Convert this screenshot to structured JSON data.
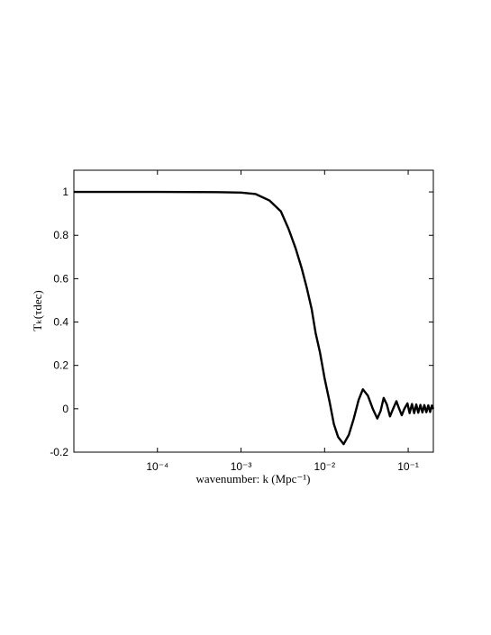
{
  "chart_data": {
    "type": "line",
    "xlabel": "wavenumber: k (Mpc⁻¹)",
    "ylabel": "Tₖ(τdec)",
    "xscale": "log",
    "xlim": [
      1e-05,
      0.2
    ],
    "ylim": [
      -0.2,
      1.1
    ],
    "xticks": [
      {
        "value": 0.0001,
        "label": "10⁻⁴"
      },
      {
        "value": 0.001,
        "label": "10⁻³"
      },
      {
        "value": 0.01,
        "label": "10⁻²"
      },
      {
        "value": 0.1,
        "label": "10⁻¹"
      }
    ],
    "yticks": [
      -0.2,
      0,
      0.2,
      0.4,
      0.6,
      0.8,
      1
    ],
    "color": "#000000",
    "x": [
      1e-05,
      0.0001,
      0.0005,
      0.001,
      0.0015,
      0.0022,
      0.003,
      0.0037,
      0.0045,
      0.0053,
      0.0061,
      0.007,
      0.0078,
      0.0088,
      0.01,
      0.0115,
      0.0129,
      0.0145,
      0.0169,
      0.0195,
      0.0223,
      0.0255,
      0.0287,
      0.033,
      0.0377,
      0.0427,
      0.0468,
      0.0509,
      0.0555,
      0.0606,
      0.066,
      0.0723,
      0.078,
      0.0838,
      0.09,
      0.098,
      0.104,
      0.111,
      0.118,
      0.125,
      0.132,
      0.14,
      0.148,
      0.156,
      0.165,
      0.174,
      0.183,
      0.192,
      0.2
    ],
    "values": [
      1,
      1,
      0.999,
      0.997,
      0.99,
      0.96,
      0.91,
      0.83,
      0.74,
      0.65,
      0.56,
      0.46,
      0.35,
      0.26,
      0.14,
      0.03,
      -0.07,
      -0.13,
      -0.163,
      -0.12,
      -0.046,
      0.04,
      0.09,
      0.06,
      0,
      -0.045,
      -0.01,
      0.05,
      0.02,
      -0.035,
      0,
      0.035,
      0,
      -0.03,
      0,
      0.025,
      -0.02,
      0.022,
      -0.02,
      0.02,
      -0.018,
      0.018,
      -0.017,
      0.017,
      -0.016,
      0.016,
      -0.015,
      0.015,
      0
    ]
  }
}
